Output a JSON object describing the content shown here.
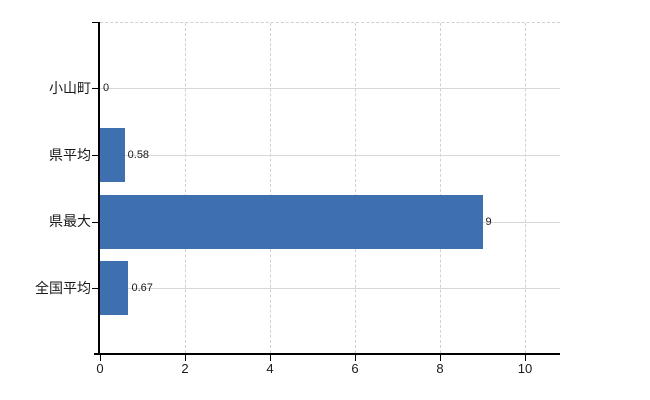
{
  "chart_data": {
    "type": "bar",
    "orientation": "horizontal",
    "title": "",
    "xlabel": "",
    "ylabel": "",
    "categories": [
      "小山町",
      "県平均",
      "県最大",
      "全国平均"
    ],
    "values": [
      0,
      0.58,
      9,
      0.67
    ],
    "value_labels": [
      "0",
      "0.58",
      "9",
      "0.67"
    ],
    "x_ticks": [
      0,
      2,
      4,
      6,
      8,
      10
    ],
    "x_tick_labels": [
      "0",
      "2",
      "4",
      "6",
      "8",
      "10"
    ],
    "xlim": [
      0,
      10.8
    ],
    "legend": "none",
    "grid": {
      "horizontal": "solid lines at category centers",
      "vertical": "dashed lines at x ticks",
      "top_border": "dashed"
    },
    "colors": {
      "bar": "#3e6fae",
      "grid_solid": "#d7d7d7",
      "grid_dashed": "#d6ced4",
      "axis": "#000000",
      "text": "#1a1a1a",
      "background": "#ffffff"
    }
  }
}
